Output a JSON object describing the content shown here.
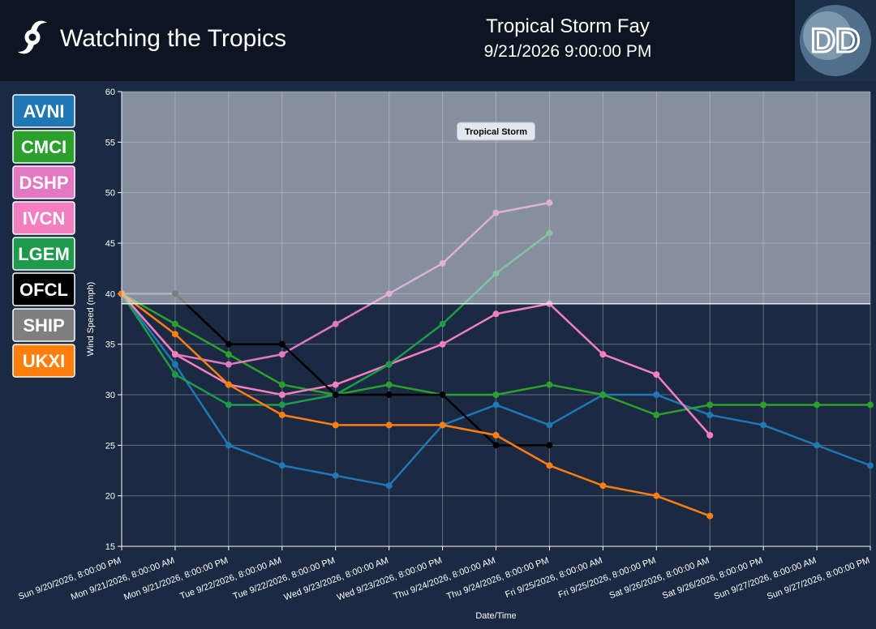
{
  "header": {
    "app_title": "Watching the Tropics",
    "storm": "Tropical Storm Fay",
    "time": "9/21/2026 9:00:00 PM"
  },
  "chart_data": {
    "type": "line",
    "xlabel": "Date/Time",
    "ylabel": "Wind Speed (mph)",
    "categories": [
      "Sun 9/20/2026, 8:00:00 PM",
      "Mon 9/21/2026, 8:00:00 AM",
      "Mon 9/21/2026, 8:00:00 PM",
      "Tue 9/22/2026, 8:00:00 AM",
      "Tue 9/22/2026, 8:00:00 PM",
      "Wed 9/23/2026, 8:00:00 AM",
      "Wed 9/23/2026, 8:00:00 PM",
      "Thu 9/24/2026, 8:00:00 AM",
      "Thu 9/24/2026, 8:00:00 PM",
      "Fri 9/25/2026, 8:00:00 AM",
      "Fri 9/25/2026, 8:00:00 PM",
      "Sat 9/26/2026, 8:00:00 AM",
      "Sat 9/26/2026, 8:00:00 PM",
      "Sun 9/27/2026, 8:00:00 AM",
      "Sun 9/27/2026, 8:00:00 PM"
    ],
    "series": [
      {
        "name": "AVNI",
        "color": "#1f77b4",
        "values": [
          40,
          33,
          25,
          23,
          22,
          21,
          27,
          29,
          27,
          30,
          30,
          28,
          27,
          25,
          23
        ]
      },
      {
        "name": "CMCI",
        "color": "#2ca02c",
        "values": [
          40,
          37,
          34,
          31,
          30,
          31,
          30,
          30,
          31,
          30,
          28,
          29,
          29,
          29,
          29
        ]
      },
      {
        "name": "DSHP",
        "color": "#e377c2",
        "values": [
          40,
          34,
          33,
          34,
          37,
          40,
          43,
          48,
          49,
          null,
          null,
          null,
          null,
          null,
          null
        ]
      },
      {
        "name": "IVCN",
        "color": "#f47fc0",
        "values": [
          40,
          34,
          31,
          30,
          31,
          33,
          35,
          38,
          39,
          34,
          32,
          26,
          null,
          null,
          null
        ]
      },
      {
        "name": "LGEM",
        "color": "#1f9a4c",
        "values": [
          40,
          32,
          29,
          29,
          30,
          33,
          37,
          42,
          46,
          null,
          null,
          null,
          null,
          null,
          null
        ]
      },
      {
        "name": "SHIP",
        "color": "#7f7f7f",
        "values": [
          40,
          40,
          null,
          null,
          null,
          null,
          null,
          null,
          null,
          null,
          null,
          null,
          null,
          null,
          null
        ]
      },
      {
        "name": "OFCL",
        "color": "#000000",
        "values": [
          null,
          40,
          35,
          35,
          30,
          30,
          30,
          25,
          25,
          null,
          null,
          null,
          null,
          null,
          null
        ]
      },
      {
        "name": "UKXI",
        "color": "#ff7f0e",
        "values": [
          40,
          36,
          31,
          28,
          27,
          27,
          27,
          26,
          23,
          21,
          20,
          18,
          null,
          null,
          null
        ]
      }
    ],
    "legend_order": [
      0,
      1,
      2,
      3,
      4,
      6,
      5,
      7
    ],
    "threshold": {
      "label": "Tropical Storm",
      "min": 39
    },
    "ylim": [
      15,
      60
    ],
    "yticks": [
      15,
      20,
      25,
      30,
      35,
      40,
      45,
      50,
      55,
      60
    ],
    "grid": true
  }
}
